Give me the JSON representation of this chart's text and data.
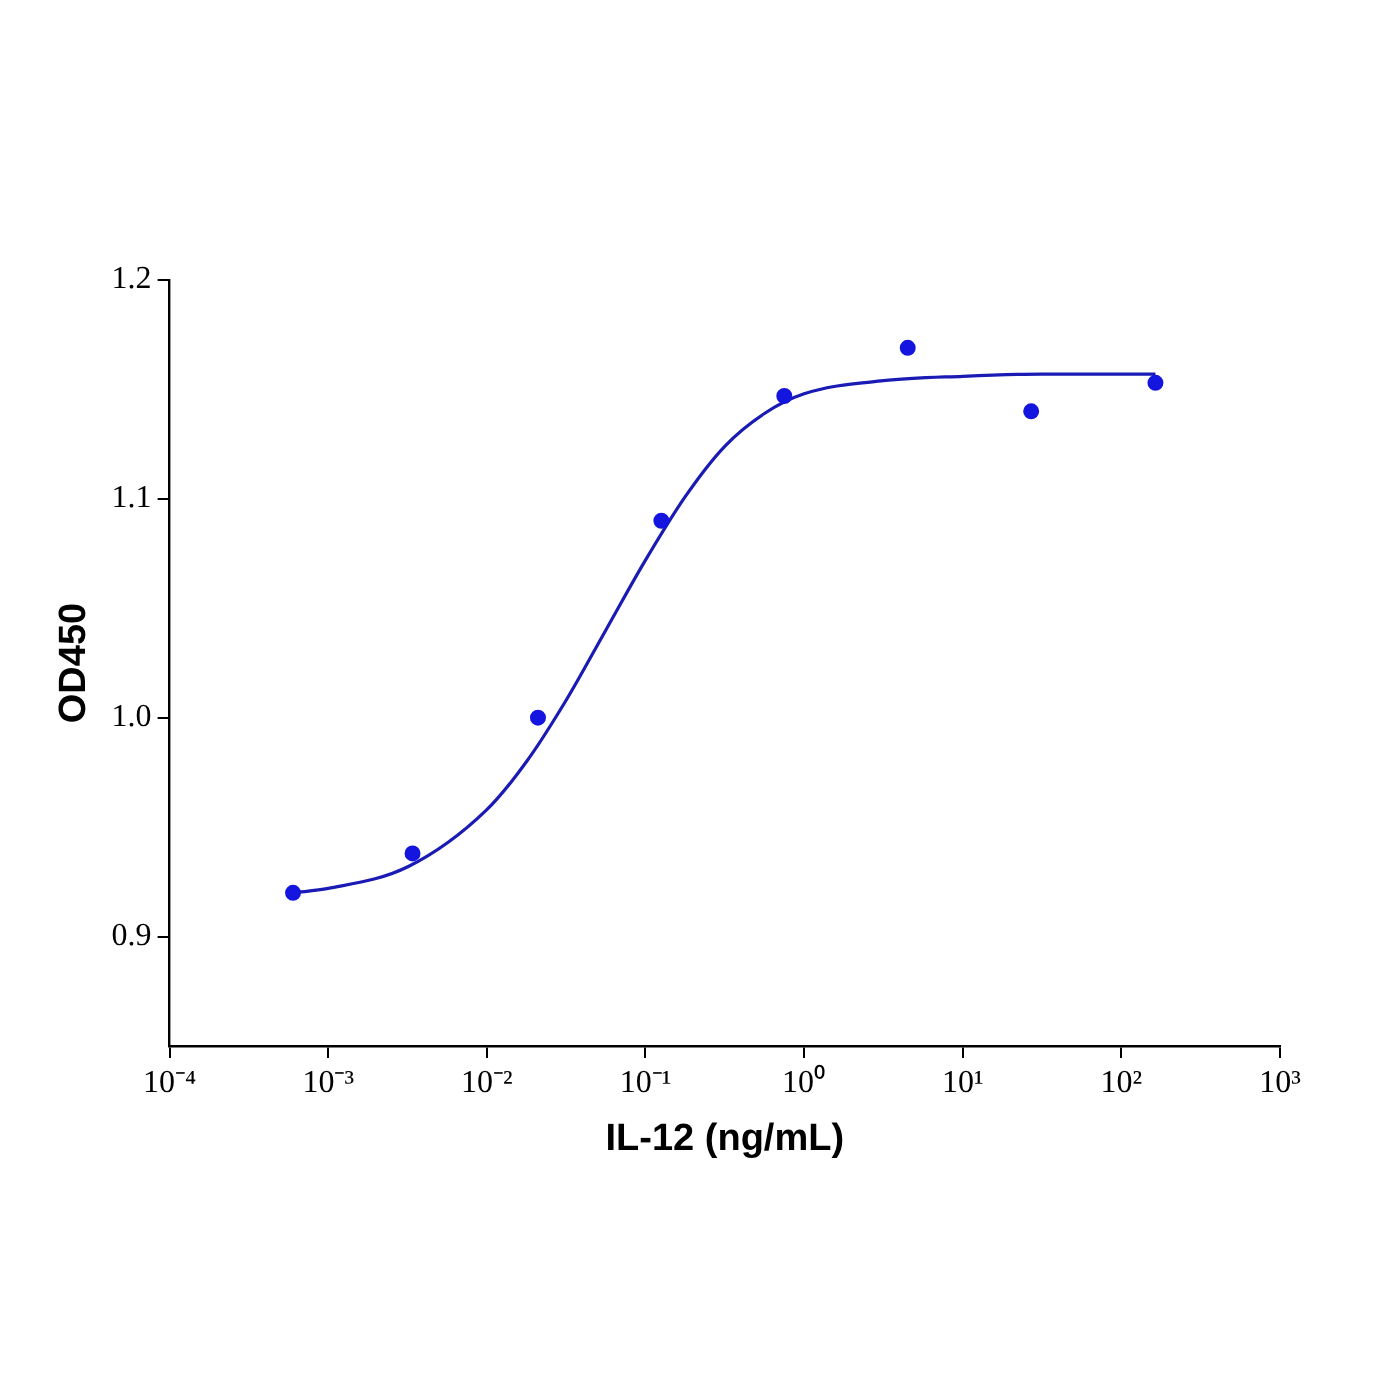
{
  "chart_data": {
    "type": "scatter",
    "xlabel": "IL-12 (ng/mL)",
    "ylabel": "OD450",
    "log": "x",
    "grid": false,
    "legend": false,
    "xlim": [
      0.0001,
      1000
    ],
    "xticks": [
      {
        "value": 0.0001,
        "label": "10⁻⁴"
      },
      {
        "value": 0.001,
        "label": "10⁻³"
      },
      {
        "value": 0.01,
        "label": "10⁻²"
      },
      {
        "value": 0.1,
        "label": "10⁻¹"
      },
      {
        "value": 1,
        "label": "10⁰"
      },
      {
        "value": 10,
        "label": "10¹"
      },
      {
        "value": 100,
        "label": "10²"
      },
      {
        "value": 1000,
        "label": "10³"
      }
    ],
    "ylim": [
      0.85,
      1.2
    ],
    "yticks": [
      {
        "value": 0.9,
        "label": "0.9"
      },
      {
        "value": 1.0,
        "label": "1.0"
      },
      {
        "value": 1.1,
        "label": "1.1"
      },
      {
        "value": 1.2,
        "label": "1.2"
      }
    ],
    "series": [
      {
        "type": "scatter",
        "marker": "circle",
        "color": "#1515e0",
        "x": [
          0.0006,
          0.0034,
          0.021,
          0.126,
          0.75,
          4.5,
          27,
          164
        ],
        "values": [
          0.92,
          0.938,
          1.0,
          1.09,
          1.147,
          1.169,
          1.14,
          1.153
        ]
      },
      {
        "type": "line",
        "marker": "none",
        "line_style": "solid",
        "color": "#1a1ab4",
        "x": [
          0.0006,
          0.001,
          0.0032,
          0.01,
          0.0178,
          0.0316,
          0.0562,
          0.1,
          0.178,
          0.316,
          0.562,
          1,
          3.16,
          10,
          31.6,
          164
        ],
        "values": [
          0.92,
          0.922,
          0.932,
          0.958,
          0.98,
          1.008,
          1.04,
          1.072,
          1.101,
          1.124,
          1.139,
          1.148,
          1.154,
          1.156,
          1.157,
          1.157
        ]
      }
    ]
  }
}
